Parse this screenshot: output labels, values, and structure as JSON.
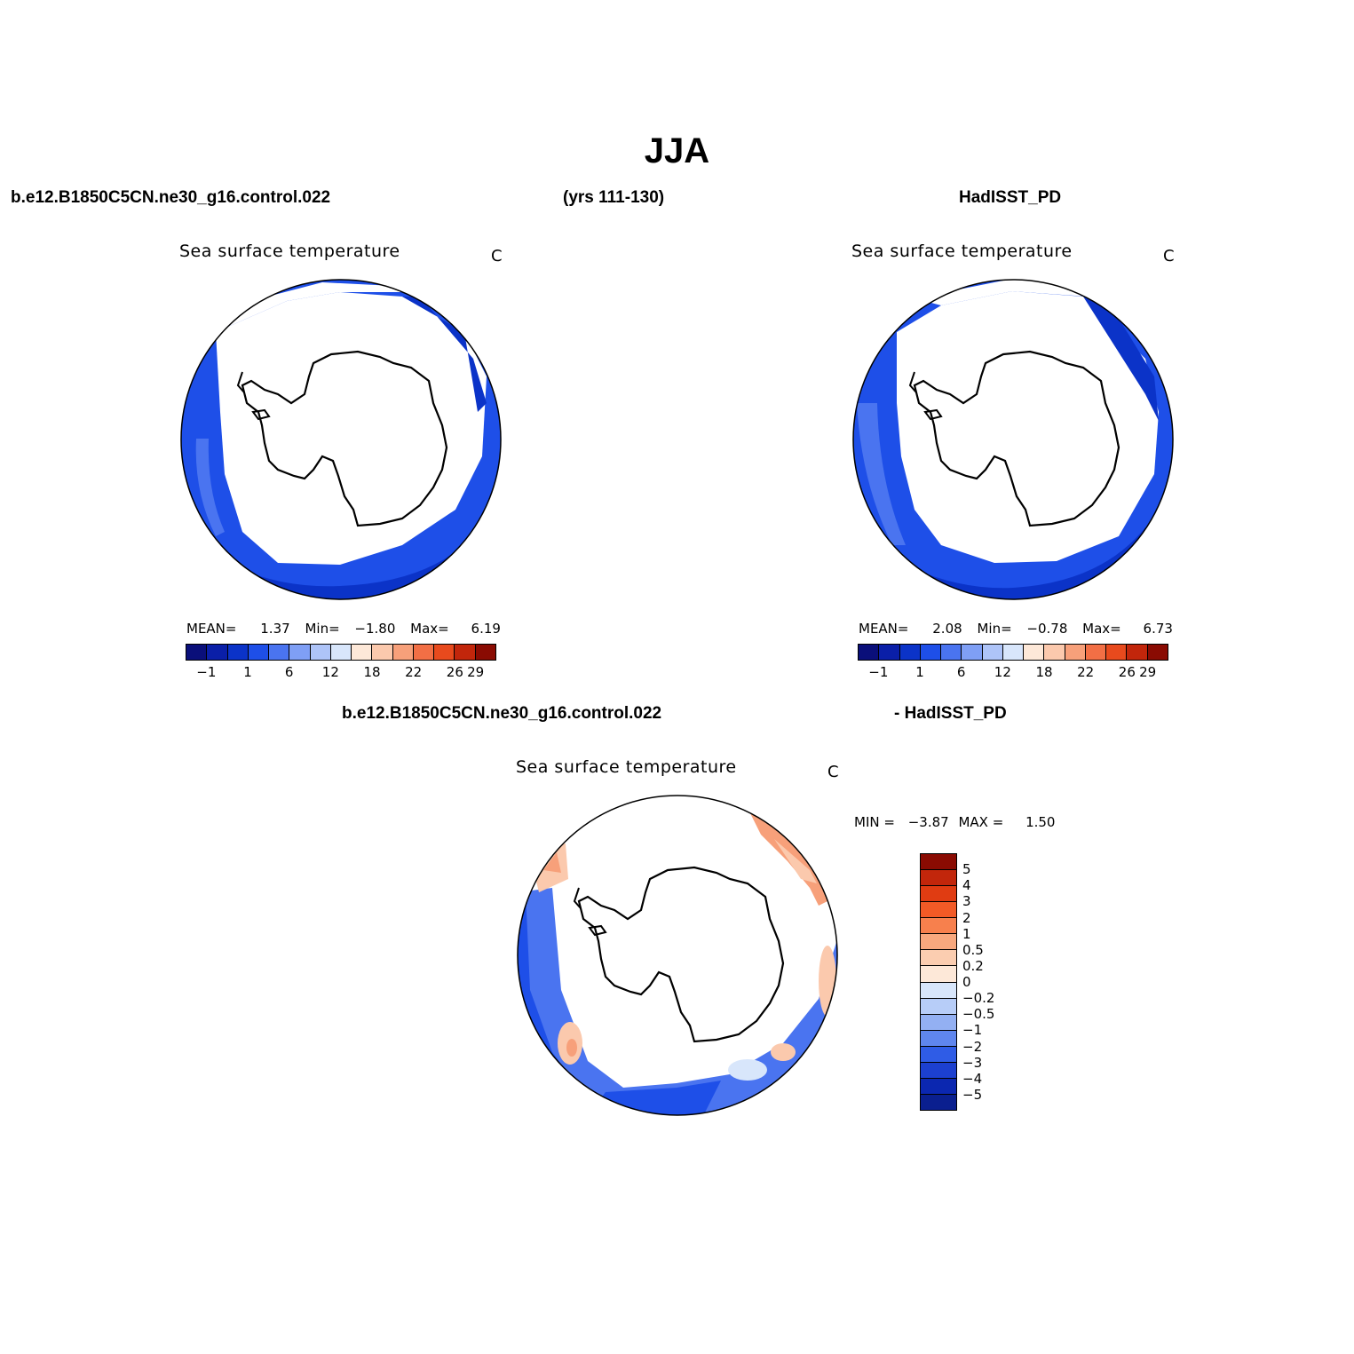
{
  "title": "JJA",
  "header": {
    "case_name": "b.e12.B1850C5CN.ne30_g16.control.022",
    "years": "(yrs 111-130)",
    "reference": "HadISST_PD",
    "diff_case": "b.e12.B1850C5CN.ne30_g16.control.022",
    "diff_ref": "- HadISST_PD"
  },
  "panels": [
    {
      "title": "Sea surface temperature",
      "units": "C",
      "stats": {
        "mean_label": "MEAN=",
        "mean": "1.37",
        "min_label": "Min=",
        "min": "−1.80",
        "max_label": "Max=",
        "max": "6.19"
      }
    },
    {
      "title": "Sea surface temperature",
      "units": "C",
      "stats": {
        "mean_label": "MEAN=",
        "mean": "2.08",
        "min_label": "Min=",
        "min": "−0.78",
        "max_label": "Max=",
        "max": "6.73"
      }
    },
    {
      "title": "Sea surface temperature",
      "units": "C",
      "stats": {
        "min_label": "MIN =",
        "min": "−3.87",
        "max_label": "MAX =",
        "max": "1.50"
      }
    }
  ],
  "colorbar_main": {
    "colors": [
      "#0a0f7a",
      "#0a1fa8",
      "#0b33c8",
      "#1e4fe8",
      "#4a74f0",
      "#7f9ff5",
      "#aec4f8",
      "#d8e6fb",
      "#fde8d8",
      "#fbc9ad",
      "#f7a07a",
      "#f26f45",
      "#e84a1d",
      "#c2260b",
      "#8a0b02"
    ],
    "ticks": [
      "−1",
      "1",
      "6",
      "12",
      "18",
      "22",
      "26",
      "29"
    ]
  },
  "colorbar_diff": {
    "colors": [
      "#8a0b02",
      "#c2260b",
      "#e03c12",
      "#f25a26",
      "#f7804d",
      "#f8a87e",
      "#fbcdb0",
      "#fde8d8",
      "#d8e6fb",
      "#b7cdf8",
      "#93b0f3",
      "#5f86ee",
      "#2f5ce6",
      "#1c40d0",
      "#0b27b0",
      "#0a1f8f"
    ],
    "labels": [
      "5",
      "4",
      "3",
      "2",
      "1",
      "0.5",
      "0.2",
      "0",
      "−0.2",
      "−0.5",
      "−1",
      "−2",
      "−3",
      "−4",
      "−5"
    ]
  }
}
